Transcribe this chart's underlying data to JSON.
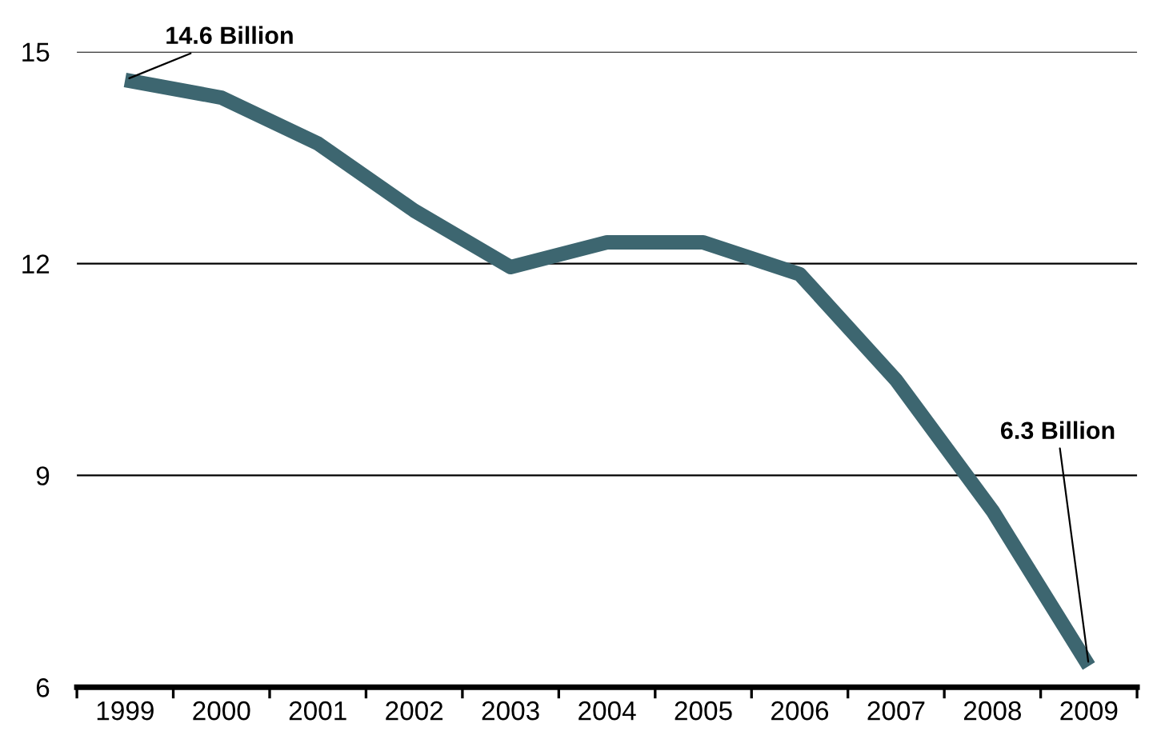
{
  "chart_data": {
    "type": "line",
    "categories": [
      "1999",
      "2000",
      "2001",
      "2002",
      "2003",
      "2004",
      "2005",
      "2006",
      "2007",
      "2008",
      "2009"
    ],
    "series": [
      {
        "color": "#3d6670",
        "values": [
          14.6,
          14.35,
          13.7,
          12.75,
          11.95,
          12.3,
          12.3,
          11.85,
          10.35,
          8.5,
          6.3
        ]
      }
    ],
    "ylim": [
      6,
      15
    ],
    "yticks": [
      6,
      9,
      12,
      15
    ],
    "grid": "y",
    "legend": false,
    "marker": "none",
    "line_style": "solid",
    "annotations": [
      {
        "text": "14.6 Billion",
        "x": "1999",
        "y": 14.6
      },
      {
        "text": "6.3 Billion",
        "x": "2009",
        "y": 6.3
      }
    ]
  }
}
